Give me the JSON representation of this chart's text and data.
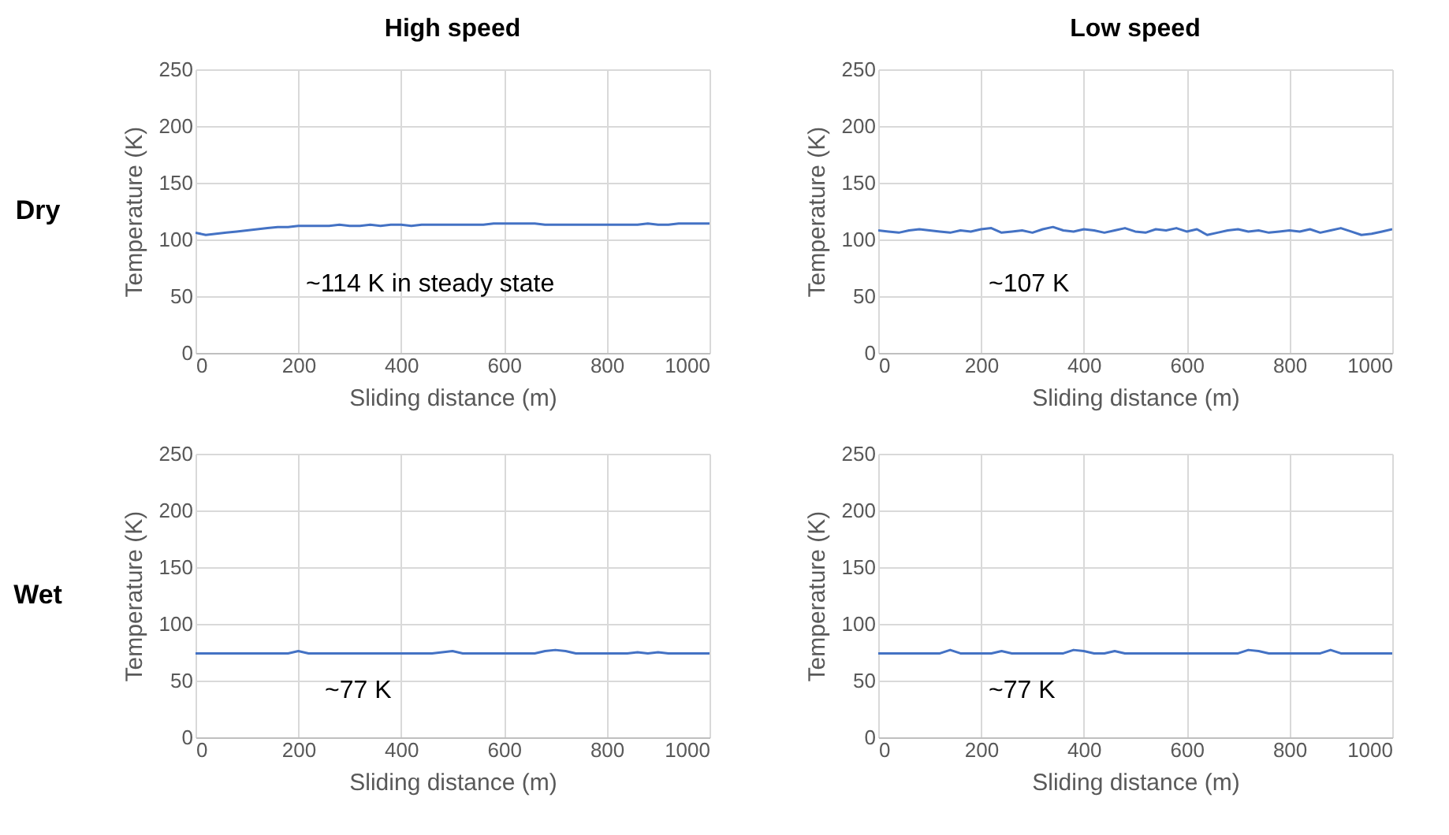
{
  "chart_data": [
    {
      "type": "line",
      "title": "High speed",
      "xlabel": "Sliding distance (m)",
      "ylabel": "Temperature (K)",
      "xlim": [
        0,
        1000
      ],
      "xticks": [
        0,
        200,
        400,
        600,
        800,
        1000
      ],
      "ylim": [
        0,
        250
      ],
      "yticks": [
        0,
        50,
        100,
        150,
        200,
        250
      ],
      "grid": true,
      "annotations": [
        "Dry",
        "~114 K in steady state"
      ],
      "x": [
        0,
        20,
        40,
        60,
        80,
        100,
        120,
        140,
        160,
        180,
        200,
        220,
        240,
        260,
        280,
        300,
        320,
        340,
        360,
        380,
        400,
        420,
        440,
        460,
        480,
        500,
        520,
        540,
        560,
        580,
        600,
        620,
        640,
        660,
        680,
        700,
        720,
        740,
        760,
        780,
        800,
        820,
        840,
        860,
        880,
        900,
        920,
        940,
        960,
        980,
        1000
      ],
      "series": [
        {
          "color": "#4472c4",
          "values": [
            106,
            104,
            105,
            106,
            107,
            108,
            109,
            110,
            111,
            111,
            112,
            112,
            112,
            112,
            113,
            112,
            112,
            113,
            112,
            113,
            113,
            112,
            113,
            113,
            113,
            113,
            113,
            113,
            113,
            114,
            114,
            114,
            114,
            114,
            113,
            113,
            113,
            113,
            113,
            113,
            113,
            113,
            113,
            113,
            114,
            113,
            113,
            114,
            114,
            114,
            114
          ]
        }
      ]
    },
    {
      "type": "line",
      "title": "Low speed",
      "xlabel": "Sliding distance (m)",
      "ylabel": "Temperature (K)",
      "xlim": [
        0,
        1000
      ],
      "xticks": [
        0,
        200,
        400,
        600,
        800,
        1000
      ],
      "ylim": [
        0,
        250
      ],
      "yticks": [
        0,
        50,
        100,
        150,
        200,
        250
      ],
      "grid": true,
      "annotations": [
        "~107 K"
      ],
      "x": [
        0,
        20,
        40,
        60,
        80,
        100,
        120,
        140,
        160,
        180,
        200,
        220,
        240,
        260,
        280,
        300,
        320,
        340,
        360,
        380,
        400,
        420,
        440,
        460,
        480,
        500,
        520,
        540,
        560,
        580,
        600,
        620,
        640,
        660,
        680,
        700,
        720,
        740,
        760,
        780,
        800,
        820,
        840,
        860,
        880,
        900,
        920,
        940,
        960,
        980,
        1000
      ],
      "series": [
        {
          "color": "#4472c4",
          "values": [
            108,
            107,
            106,
            108,
            109,
            108,
            107,
            106,
            108,
            107,
            109,
            110,
            106,
            107,
            108,
            106,
            109,
            111,
            108,
            107,
            109,
            108,
            106,
            108,
            110,
            107,
            106,
            109,
            108,
            110,
            107,
            109,
            104,
            106,
            108,
            109,
            107,
            108,
            106,
            107,
            108,
            107,
            109,
            106,
            108,
            110,
            107,
            104,
            105,
            107,
            109
          ]
        }
      ]
    },
    {
      "type": "line",
      "xlabel": "Sliding distance (m)",
      "ylabel": "Temperature (K)",
      "xlim": [
        0,
        1000
      ],
      "xticks": [
        0,
        200,
        400,
        600,
        800,
        1000
      ],
      "ylim": [
        0,
        250
      ],
      "yticks": [
        0,
        50,
        100,
        150,
        200,
        250
      ],
      "grid": true,
      "annotations": [
        "Wet",
        "~77 K"
      ],
      "x": [
        0,
        20,
        40,
        60,
        80,
        100,
        120,
        140,
        160,
        180,
        200,
        220,
        240,
        260,
        280,
        300,
        320,
        340,
        360,
        380,
        400,
        420,
        440,
        460,
        480,
        500,
        520,
        540,
        560,
        580,
        600,
        620,
        640,
        660,
        680,
        700,
        720,
        740,
        760,
        780,
        800,
        820,
        840,
        860,
        880,
        900,
        920,
        940,
        960,
        980,
        1000
      ],
      "series": [
        {
          "color": "#4472c4",
          "values": [
            74,
            74,
            74,
            74,
            74,
            74,
            74,
            74,
            74,
            74,
            76,
            74,
            74,
            74,
            74,
            74,
            74,
            74,
            74,
            74,
            74,
            74,
            74,
            74,
            75,
            76,
            74,
            74,
            74,
            74,
            74,
            74,
            74,
            74,
            76,
            77,
            76,
            74,
            74,
            74,
            74,
            74,
            74,
            75,
            74,
            75,
            74,
            74,
            74,
            74,
            74
          ]
        }
      ]
    },
    {
      "type": "line",
      "xlabel": "Sliding distance (m)",
      "ylabel": "Temperature (K)",
      "xlim": [
        0,
        1000
      ],
      "xticks": [
        0,
        200,
        400,
        600,
        800,
        1000
      ],
      "ylim": [
        0,
        250
      ],
      "yticks": [
        0,
        50,
        100,
        150,
        200,
        250
      ],
      "grid": true,
      "annotations": [
        "~77 K"
      ],
      "x": [
        0,
        20,
        40,
        60,
        80,
        100,
        120,
        140,
        160,
        180,
        200,
        220,
        240,
        260,
        280,
        300,
        320,
        340,
        360,
        380,
        400,
        420,
        440,
        460,
        480,
        500,
        520,
        540,
        560,
        580,
        600,
        620,
        640,
        660,
        680,
        700,
        720,
        740,
        760,
        780,
        800,
        820,
        840,
        860,
        880,
        900,
        920,
        940,
        960,
        980,
        1000
      ],
      "series": [
        {
          "color": "#4472c4",
          "values": [
            74,
            74,
            74,
            74,
            74,
            74,
            74,
            77,
            74,
            74,
            74,
            74,
            76,
            74,
            74,
            74,
            74,
            74,
            74,
            77,
            76,
            74,
            74,
            76,
            74,
            74,
            74,
            74,
            74,
            74,
            74,
            74,
            74,
            74,
            74,
            74,
            77,
            76,
            74,
            74,
            74,
            74,
            74,
            74,
            77,
            74,
            74,
            74,
            74,
            74,
            74
          ]
        }
      ]
    }
  ]
}
